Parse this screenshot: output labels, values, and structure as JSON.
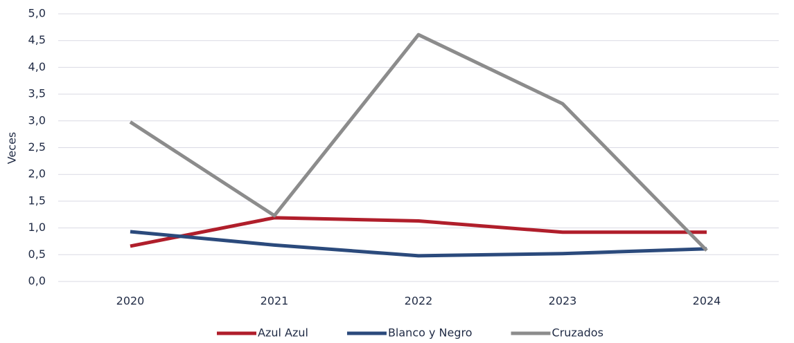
{
  "chart_data": {
    "type": "line",
    "y_label": "Veces",
    "categories": [
      "2020",
      "2021",
      "2022",
      "2023",
      "2024"
    ],
    "series": [
      {
        "name": "Azul Azul",
        "color": "#b01e2b",
        "values": [
          0.66,
          1.19,
          1.13,
          0.92,
          0.92
        ]
      },
      {
        "name": "Blanco y Negro",
        "color": "#2b4a7c",
        "values": [
          0.93,
          0.68,
          0.48,
          0.52,
          0.61
        ]
      },
      {
        "name": "Cruzados",
        "color": "#8c8c8c",
        "values": [
          2.98,
          1.23,
          4.61,
          3.32,
          0.58
        ]
      }
    ],
    "ylim": [
      0,
      5
    ],
    "yticks": [
      {
        "value": 0,
        "label": "0,0"
      },
      {
        "value": 0.5,
        "label": "0,5"
      },
      {
        "value": 1,
        "label": "1,0"
      },
      {
        "value": 1.5,
        "label": "1,5"
      },
      {
        "value": 2,
        "label": "2,0"
      },
      {
        "value": 2.5,
        "label": "2,5"
      },
      {
        "value": 3,
        "label": "3,0"
      },
      {
        "value": 3.5,
        "label": "3,5"
      },
      {
        "value": 4,
        "label": "4,0"
      },
      {
        "value": 4.5,
        "label": "4,5"
      },
      {
        "value": 5,
        "label": "5,0"
      }
    ],
    "grid": true,
    "legend": "bottom"
  }
}
